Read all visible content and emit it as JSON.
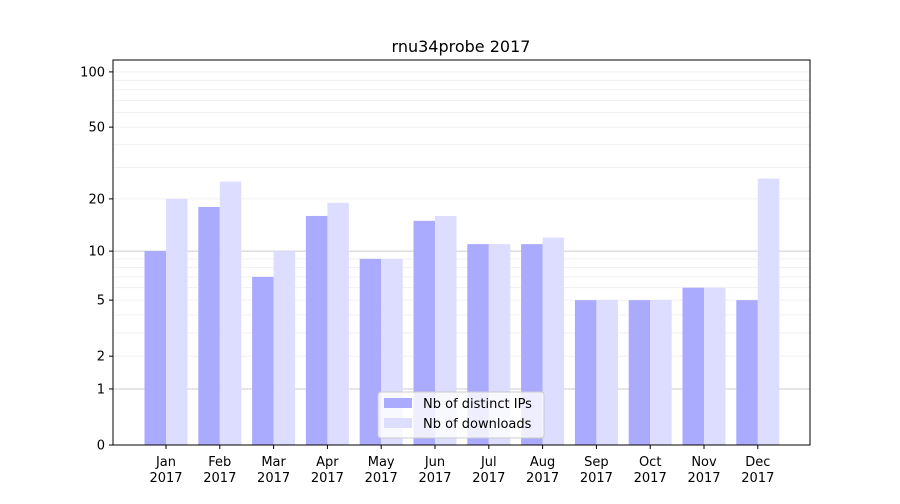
{
  "chart_data": {
    "type": "bar",
    "title": "rnu34probe 2017",
    "xlabel": "",
    "ylabel": "",
    "yscale": "log(1+x)",
    "ylim": [
      0,
      116
    ],
    "yticks": [
      0,
      1,
      2,
      5,
      10,
      20,
      50,
      100
    ],
    "grid": true,
    "legend_position": "bottom-center",
    "categories": [
      "Jan\n2017",
      "Feb\n2017",
      "Mar\n2017",
      "Apr\n2017",
      "May\n2017",
      "Jun\n2017",
      "Jul\n2017",
      "Aug\n2017",
      "Sep\n2017",
      "Oct\n2017",
      "Nov\n2017",
      "Dec\n2017"
    ],
    "series": [
      {
        "name": "Nb of distinct IPs",
        "color": "#aaaaff",
        "values": [
          10,
          18,
          7,
          16,
          9,
          15,
          11,
          11,
          5,
          5,
          6,
          5
        ]
      },
      {
        "name": "Nb of downloads",
        "color": "#ddddff",
        "values": [
          20,
          25,
          10,
          19,
          9,
          16,
          11,
          12,
          5,
          5,
          6,
          26
        ]
      }
    ]
  }
}
